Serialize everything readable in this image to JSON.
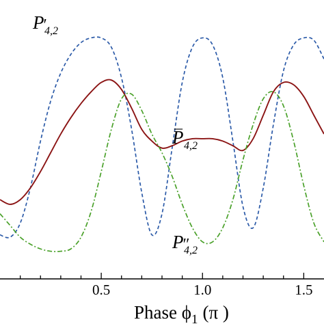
{
  "chart_data": {
    "type": "line",
    "xlabel": "Phase ϕ₁ (π  )",
    "xlabel_main": "Phase ϕ",
    "xlabel_sub": "1",
    "xlabel_tail": "(π  )",
    "xlim": [
      0.0,
      1.6
    ],
    "ylim": [
      0.0,
      1.0
    ],
    "x_ticks": [
      0.5,
      1.0,
      1.5
    ],
    "x_tick_labels": [
      "0.5",
      "1.0",
      "1.5"
    ],
    "series": [
      {
        "name": "P'4,2",
        "label_main": "P",
        "label_mark": "′",
        "label_sub": "4,2",
        "style": "dashed",
        "color": "#2b5aa8",
        "x": [
          0.0,
          0.05,
          0.1,
          0.15,
          0.2,
          0.25,
          0.3,
          0.35,
          0.4,
          0.45,
          0.5,
          0.55,
          0.6,
          0.65,
          0.7,
          0.75,
          0.8,
          0.85,
          0.9,
          0.95,
          1.0,
          1.05,
          1.1,
          1.15,
          1.2,
          1.25,
          1.3,
          1.35,
          1.4,
          1.45,
          1.5,
          1.55,
          1.6
        ],
        "y": [
          0.15,
          0.14,
          0.2,
          0.35,
          0.55,
          0.72,
          0.84,
          0.92,
          0.97,
          0.99,
          0.99,
          0.95,
          0.82,
          0.6,
          0.33,
          0.15,
          0.24,
          0.52,
          0.8,
          0.95,
          0.99,
          0.96,
          0.82,
          0.55,
          0.27,
          0.18,
          0.35,
          0.62,
          0.85,
          0.96,
          0.99,
          0.98,
          0.9
        ]
      },
      {
        "name": "P̄4,2",
        "label_main": "P",
        "label_mark": "¯",
        "label_sub": "4,2",
        "style": "solid",
        "color": "#8b1414",
        "x": [
          0.0,
          0.05,
          0.1,
          0.15,
          0.2,
          0.25,
          0.3,
          0.35,
          0.4,
          0.45,
          0.5,
          0.55,
          0.6,
          0.65,
          0.7,
          0.75,
          0.8,
          0.85,
          0.9,
          0.95,
          1.0,
          1.05,
          1.1,
          1.15,
          1.2,
          1.25,
          1.3,
          1.35,
          1.4,
          1.45,
          1.5,
          1.55,
          1.6
        ],
        "y": [
          0.3,
          0.28,
          0.3,
          0.35,
          0.42,
          0.5,
          0.58,
          0.65,
          0.71,
          0.76,
          0.8,
          0.81,
          0.77,
          0.69,
          0.6,
          0.55,
          0.52,
          0.53,
          0.55,
          0.56,
          0.56,
          0.56,
          0.55,
          0.53,
          0.51,
          0.56,
          0.66,
          0.76,
          0.8,
          0.79,
          0.74,
          0.66,
          0.58
        ]
      },
      {
        "name": "P''4,2",
        "label_main": "P",
        "label_mark": "″",
        "label_sub": "4,2",
        "style": "dashdot",
        "color": "#4aa12a",
        "x": [
          0.0,
          0.05,
          0.1,
          0.15,
          0.2,
          0.25,
          0.3,
          0.35,
          0.4,
          0.45,
          0.5,
          0.55,
          0.6,
          0.65,
          0.7,
          0.75,
          0.8,
          0.85,
          0.9,
          0.95,
          1.0,
          1.05,
          1.1,
          1.15,
          1.2,
          1.25,
          1.3,
          1.35,
          1.4,
          1.45,
          1.5,
          1.55,
          1.6
        ],
        "y": [
          0.24,
          0.19,
          0.14,
          0.11,
          0.09,
          0.08,
          0.08,
          0.09,
          0.14,
          0.25,
          0.42,
          0.6,
          0.73,
          0.75,
          0.68,
          0.58,
          0.5,
          0.4,
          0.28,
          0.18,
          0.12,
          0.12,
          0.18,
          0.3,
          0.47,
          0.62,
          0.73,
          0.76,
          0.7,
          0.55,
          0.36,
          0.2,
          0.12
        ]
      }
    ]
  }
}
